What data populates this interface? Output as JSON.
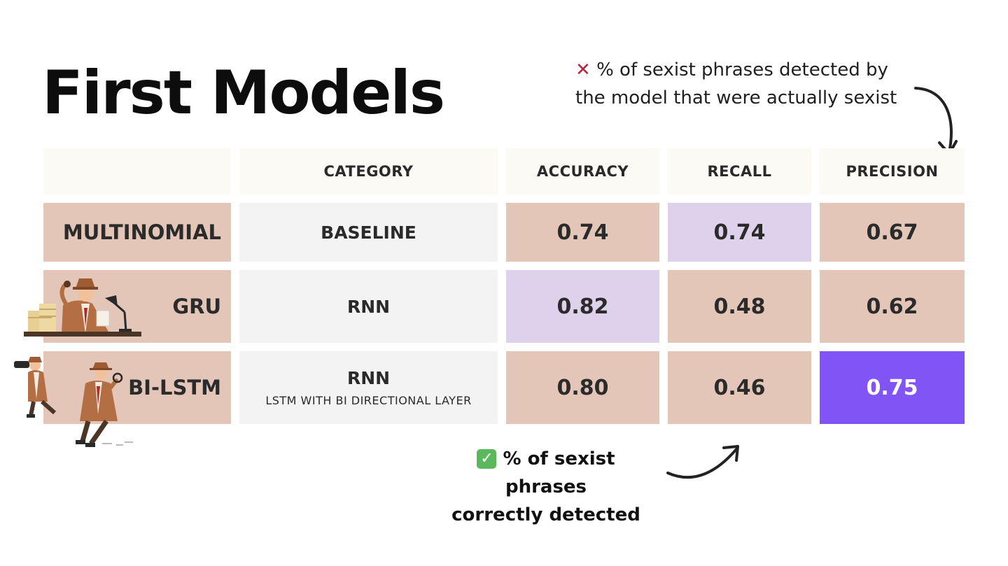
{
  "title": "First Models",
  "notes": {
    "top_icon": "x-mark-icon",
    "top_text_line1": "% of sexist phrases detected by",
    "top_text_line2": "the model that were actually sexist",
    "bottom_icon": "check-mark-icon",
    "bottom_text_line1": "% of sexist phrases",
    "bottom_text_line2": "correctly detected"
  },
  "table": {
    "headers": {
      "category": "CATEGORY",
      "accuracy": "ACCURACY",
      "recall": "RECALL",
      "precision": "PRECISION"
    },
    "rows": [
      {
        "model": "MULTINOMIAL",
        "category": "BASELINE",
        "category_sub": "",
        "accuracy": "0.74",
        "recall": "0.74",
        "precision": "0.67"
      },
      {
        "model": "GRU",
        "category": "RNN",
        "category_sub": "",
        "accuracy": "0.82",
        "recall": "0.48",
        "precision": "0.62"
      },
      {
        "model": "BI-LSTM",
        "category": "RNN",
        "category_sub": "LSTM WITH BI DIRECTIONAL LAYER",
        "accuracy": "0.80",
        "recall": "0.46",
        "precision": "0.75"
      }
    ]
  },
  "colors": {
    "tan": "#e3c6b7",
    "lilac": "#ddd1ec",
    "purple": "#8155f5",
    "header": "#fbfaf5",
    "category": "#f3f3f3"
  }
}
